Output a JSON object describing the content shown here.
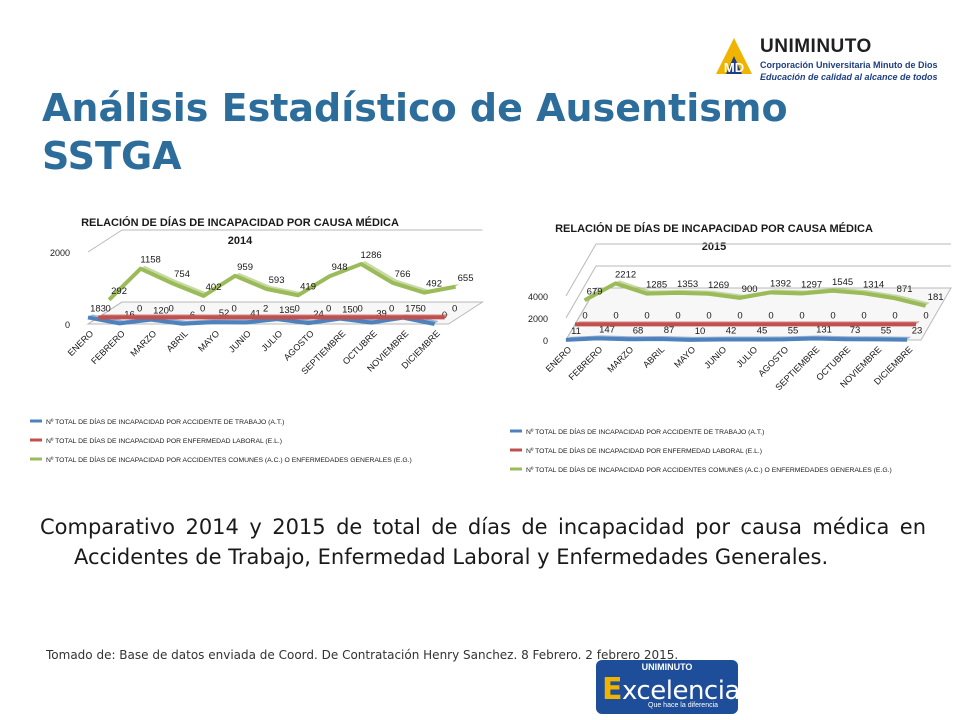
{
  "logo": {
    "brand": "UNIMINUTO",
    "line1": "Corporación Universitaria Minuto de Dios",
    "line2": "Educación de calidad al alcance de todos",
    "mark_text": "MD",
    "brand_color": "#1d3f82",
    "accent_color": "#f0b400"
  },
  "title": "Análisis Estadístico de Ausentismo SSTGA",
  "body": "Comparativo 2014 y 2015 de total de días de incapacidad por causa médica en Accidentes de Trabajo, Enfermedad Laboral y Enfermedades Generales.",
  "source": "Tomado de: Base de datos enviada de Coord. De Contratación Henry Sanchez. 8 Febrero. ",
  "source_tail": "2 febrero 2015.",
  "badge": {
    "top": "UNIMINUTO",
    "letter": "E",
    "rest": "xcelencia",
    "tag": "Que hace la diferencia"
  },
  "chart_data": [
    {
      "type": "line",
      "title": "RELACIÓN DE DÍAS DE INCAPACIDAD POR CAUSA MÉDICA",
      "subtitle": "2014",
      "categories": [
        "ENERO",
        "FEBRERO",
        "MARZO",
        "ABRIL",
        "MAYO",
        "JUNIO",
        "JULIO",
        "AGOSTO",
        "SEPTIEMBRE",
        "OCTUBRE",
        "NOVIEMBRE",
        "DICIEMBRE"
      ],
      "yticks": [
        "0",
        "2000"
      ],
      "ylim": [
        0,
        2000
      ],
      "style": "3d",
      "legend_position": "bottom",
      "series": [
        {
          "name": "Nº TOTAL DE DÍAS DE INCAPACIDAD POR ACCIDENTE DE TRABAJO (A.T.)",
          "color": "#4f81bd",
          "values": [
            183,
            16,
            120,
            6,
            52,
            41,
            135,
            24,
            150,
            39,
            175,
            0
          ]
        },
        {
          "name": "Nº TOTAL DE DÍAS DE INCAPACIDAD POR ENFERMEDAD LABORAL (E.L.)",
          "color": "#c0504d",
          "values": [
            0,
            0,
            0,
            0,
            0,
            2,
            0,
            0,
            0,
            0,
            0,
            0
          ]
        },
        {
          "name": "Nº TOTAL DE DÍAS DE INCAPACIDAD POR ACCIDENTES COMUNES (A.C.) O ENFERMEDADES GENERALES (E.G.)",
          "color": "#9bbb59",
          "values": [
            292,
            1158,
            754,
            402,
            959,
            593,
            419,
            948,
            1286,
            766,
            492,
            655
          ]
        }
      ]
    },
    {
      "type": "line",
      "title": "RELACIÓN DE DÍAS DE INCAPACIDAD POR CAUSA MÉDICA",
      "subtitle": "2015",
      "categories": [
        "ENERO",
        "FEBRERO",
        "MARZO",
        "ABRIL",
        "MAYO",
        "JUNIO",
        "JULIO",
        "AGOSTO",
        "SEPTIEMBRE",
        "OCTUBRE",
        "NOVIEMBRE",
        "DICIEMBRE"
      ],
      "yticks": [
        "0",
        "2000",
        "4000"
      ],
      "ylim": [
        0,
        4000
      ],
      "style": "3d",
      "legend_position": "bottom",
      "series": [
        {
          "name": "Nº TOTAL DE DÍAS DE INCAPACIDAD POR ACCIDENTE DE TRABAJO (A.T.)",
          "color": "#4f81bd",
          "values": [
            11,
            147,
            68,
            87,
            10,
            42,
            45,
            55,
            131,
            73,
            55,
            23
          ]
        },
        {
          "name": "Nº TOTAL DE DÍAS DE INCAPACIDAD POR ENFERMEDAD LABORAL (E.L.)",
          "color": "#c0504d",
          "values": [
            0,
            0,
            0,
            0,
            0,
            0,
            0,
            0,
            0,
            0,
            0,
            0
          ]
        },
        {
          "name": "Nº TOTAL DE DÍAS DE INCAPACIDAD POR ACCIDENTES COMUNES (A.C.) O ENFERMEDADES GENERALES (E.G.)",
          "color": "#9bbb59",
          "values": [
            679,
            2212,
            1285,
            1353,
            1269,
            900,
            1392,
            1297,
            1545,
            1314,
            871,
            181
          ]
        }
      ]
    }
  ]
}
